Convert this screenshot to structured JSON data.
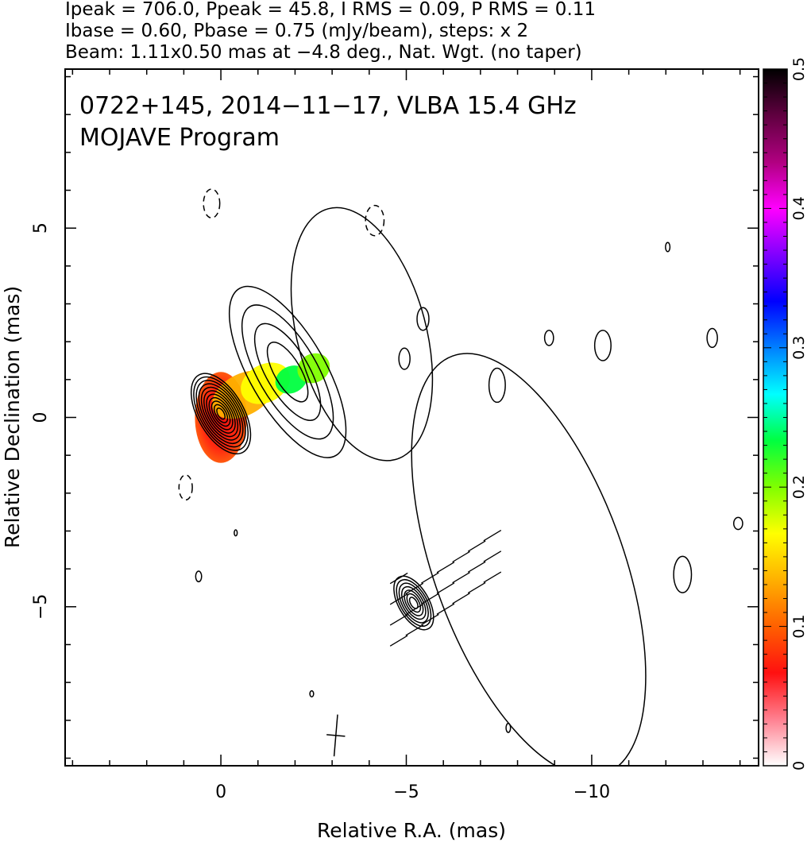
{
  "header": {
    "line1": "Ipeak = 706.0, Ppeak = 45.8, I RMS = 0.09, P RMS = 0.11",
    "line2": "Ibase = 0.60, Pbase = 0.75 (mJy/beam), steps: x 2",
    "line3": "Beam: 1.11x0.50 mas at −4.8 deg., Nat. Wgt. (no taper)"
  },
  "chart_data": {
    "type": "heatmap",
    "title": "0722+145, 2014−11−17, VLBA 15.4 GHz",
    "subtitle": "MOJAVE Program",
    "xlabel": "Relative R.A. (mas)",
    "ylabel": "Relative Declination (mas)",
    "xlim": [
      4.2,
      -14.5
    ],
    "ylim": [
      -9.2,
      9.2
    ],
    "x_ticks": [
      {
        "value": 0,
        "label": "0"
      },
      {
        "value": -5,
        "label": "−5"
      },
      {
        "value": -10,
        "label": "−10"
      }
    ],
    "y_ticks": [
      {
        "value": 5,
        "label": "5"
      },
      {
        "value": 0,
        "label": "0"
      },
      {
        "value": -5,
        "label": "−5"
      }
    ],
    "colorbar": {
      "range": [
        0,
        0.5
      ],
      "ticks": [
        {
          "value": 0,
          "label": "0"
        },
        {
          "value": 0.1,
          "label": "0.1"
        },
        {
          "value": 0.2,
          "label": "0.2"
        },
        {
          "value": 0.3,
          "label": "0.3"
        },
        {
          "value": 0.4,
          "label": "0.4"
        },
        {
          "value": 0.5,
          "label": "0.5"
        }
      ],
      "colors": [
        "#ffffff",
        "#ff8090",
        "#ff1010",
        "#ff6000",
        "#ffb000",
        "#ffff00",
        "#80ff00",
        "#00ff40",
        "#00ffff",
        "#0080ff",
        "#0000ff",
        "#8000ff",
        "#ff00ff",
        "#b00080",
        "#600040",
        "#000000"
      ]
    },
    "contour_levels_mjy_per_beam": [
      0.6,
      1.2,
      2.4,
      4.8,
      9.6,
      19.2,
      38.4,
      76.8,
      153.6,
      307.2,
      614.4
    ],
    "components": [
      {
        "name": "core",
        "ra": 0.0,
        "dec": 0.1,
        "pa_deg": 60,
        "major": 2.4,
        "minor": 1.2,
        "levels": 11
      },
      {
        "name": "jet_inner",
        "ra": -1.8,
        "dec": 1.2,
        "pa_deg": 60,
        "major": 5.2,
        "minor": 2.0,
        "levels": 4
      },
      {
        "name": "jet_outer",
        "ra": -3.8,
        "dec": 2.2,
        "pa_deg": 75,
        "major": 7.0,
        "minor": 3.4,
        "levels": 1
      },
      {
        "name": "secondary",
        "ra": -5.2,
        "dec": -4.9,
        "pa_deg": 60,
        "major": 1.6,
        "minor": 0.8,
        "levels": 7
      },
      {
        "name": "secondary_tail",
        "ra": -8.3,
        "dec": -3.9,
        "pa_deg": 70,
        "major": 12.0,
        "minor": 5.0,
        "levels": 1
      }
    ],
    "small_contours": [
      {
        "ra": -4.15,
        "dec": 5.2,
        "rx": 0.25,
        "ry": 0.4,
        "dashed": true
      },
      {
        "ra": 0.25,
        "dec": 5.65,
        "rx": 0.22,
        "ry": 0.38,
        "dashed": true
      },
      {
        "ra": 0.95,
        "dec": -1.85,
        "rx": 0.18,
        "ry": 0.33,
        "dashed": true
      },
      {
        "ra": -4.95,
        "dec": 1.55,
        "rx": 0.15,
        "ry": 0.28,
        "dashed": false
      },
      {
        "ra": -7.45,
        "dec": 0.85,
        "rx": 0.22,
        "ry": 0.45,
        "dashed": false
      },
      {
        "ra": -8.85,
        "dec": 2.1,
        "rx": 0.12,
        "ry": 0.2,
        "dashed": false
      },
      {
        "ra": -10.3,
        "dec": 1.9,
        "rx": 0.22,
        "ry": 0.4,
        "dashed": false
      },
      {
        "ra": -13.25,
        "dec": 2.1,
        "rx": 0.14,
        "ry": 0.25,
        "dashed": false
      },
      {
        "ra": -12.45,
        "dec": -4.15,
        "rx": 0.24,
        "ry": 0.48,
        "dashed": false
      },
      {
        "ra": -5.45,
        "dec": 2.6,
        "rx": 0.16,
        "ry": 0.3,
        "dashed": false
      },
      {
        "ra": -13.95,
        "dec": -2.8,
        "rx": 0.12,
        "ry": 0.16,
        "dashed": false
      },
      {
        "ra": 0.6,
        "dec": -4.2,
        "rx": 0.08,
        "ry": 0.14,
        "dashed": false
      },
      {
        "ra": -7.75,
        "dec": -8.2,
        "rx": 0.06,
        "ry": 0.12,
        "dashed": false
      },
      {
        "ra": -12.05,
        "dec": 4.5,
        "rx": 0.06,
        "ry": 0.12,
        "dashed": false
      },
      {
        "ra": -2.45,
        "dec": -7.3,
        "rx": 0.05,
        "ry": 0.08,
        "dashed": false
      },
      {
        "ra": -0.4,
        "dec": -3.05,
        "rx": 0.04,
        "ry": 0.08,
        "dashed": false
      }
    ],
    "polarization_fraction_regions": [
      {
        "ra": 0.0,
        "dec": 0.0,
        "value": 0.1
      },
      {
        "ra": -0.6,
        "dec": 0.6,
        "value": 0.12
      },
      {
        "ra": -1.2,
        "dec": 0.9,
        "value": 0.15
      },
      {
        "ra": -1.9,
        "dec": 1.0,
        "value": 0.24
      },
      {
        "ra": -2.5,
        "dec": 1.3,
        "value": 0.19
      }
    ],
    "beam": {
      "major_mas": 1.11,
      "minor_mas": 0.5,
      "pa_deg": -4.8,
      "ra": -3.1,
      "dec": -8.4
    }
  }
}
